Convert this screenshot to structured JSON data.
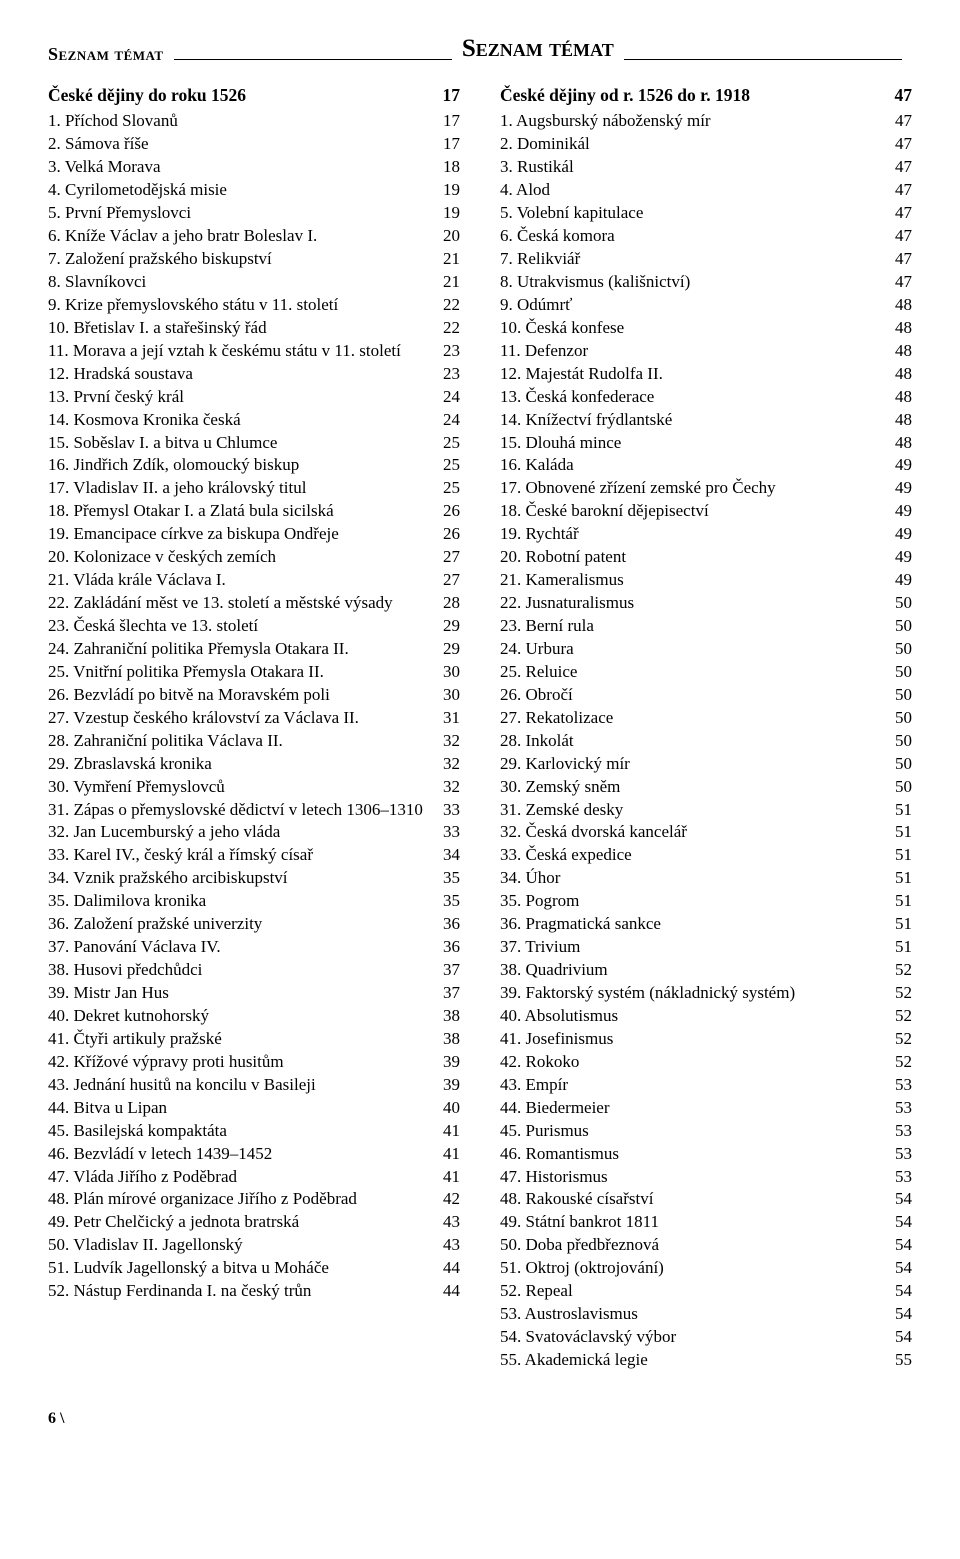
{
  "header": {
    "sideLabel": "Seznam témat",
    "centerTitle": "Seznam témat"
  },
  "footer": {
    "text": "6 \\"
  },
  "left": {
    "sectionTitle": "České dějiny do roku 1526",
    "sectionPage": "17",
    "items": [
      {
        "label": "1. Příchod Slovanů",
        "page": "17"
      },
      {
        "label": "2. Sámova říše",
        "page": "17"
      },
      {
        "label": "3. Velká Morava",
        "page": "18"
      },
      {
        "label": "4. Cyrilometodějská misie",
        "page": "19"
      },
      {
        "label": "5. První Přemyslovci",
        "page": "19"
      },
      {
        "label": "6. Kníže Václav a jeho bratr Boleslav I.",
        "page": "20"
      },
      {
        "label": "7. Založení pražského biskupství",
        "page": "21"
      },
      {
        "label": "8. Slavníkovci",
        "page": "21"
      },
      {
        "label": "9. Krize přemyslovského státu v 11. století",
        "page": "22"
      },
      {
        "label": "10. Břetislav I. a stařešinský řád",
        "page": "22"
      },
      {
        "label": "11. Morava a její vztah k českému státu v 11. století",
        "page": "23"
      },
      {
        "label": "12. Hradská soustava",
        "page": "23"
      },
      {
        "label": "13. První český král",
        "page": "24"
      },
      {
        "label": "14. Kosmova Kronika česká",
        "page": "24"
      },
      {
        "label": "15. Soběslav I. a bitva u Chlumce",
        "page": "25"
      },
      {
        "label": "16. Jindřich Zdík, olomoucký biskup",
        "page": "25"
      },
      {
        "label": "17. Vladislav II. a jeho královský titul",
        "page": "25"
      },
      {
        "label": "18. Přemysl Otakar I. a Zlatá bula sicilská",
        "page": "26"
      },
      {
        "label": "19. Emancipace církve za biskupa Ondřeje",
        "page": "26"
      },
      {
        "label": "20. Kolonizace v českých zemích",
        "page": "27"
      },
      {
        "label": "21. Vláda krále Václava I.",
        "page": "27"
      },
      {
        "label": "22. Zakládání měst ve 13. století a městské výsady",
        "page": "28"
      },
      {
        "label": "23. Česká šlechta ve 13. století",
        "page": "29"
      },
      {
        "label": "24. Zahraniční politika Přemysla Otakara II.",
        "page": "29"
      },
      {
        "label": "25. Vnitřní politika Přemysla Otakara II.",
        "page": "30"
      },
      {
        "label": "26. Bezvládí po bitvě na Moravském poli",
        "page": "30"
      },
      {
        "label": "27. Vzestup českého království za Václava II.",
        "page": "31"
      },
      {
        "label": "28. Zahraniční politika Václava II.",
        "page": "32"
      },
      {
        "label": "29. Zbraslavská kronika",
        "page": "32"
      },
      {
        "label": "30. Vymření Přemyslovců",
        "page": "32"
      },
      {
        "label": "31. Zápas o přemyslovské dědictví v letech 1306–1310",
        "page": "33"
      },
      {
        "label": "32. Jan Lucemburský a jeho vláda",
        "page": "33"
      },
      {
        "label": "33. Karel IV., český král a římský císař",
        "page": "34"
      },
      {
        "label": "34. Vznik pražského arcibiskupství",
        "page": "35"
      },
      {
        "label": "35. Dalimilova kronika",
        "page": "35"
      },
      {
        "label": "36. Založení pražské univerzity",
        "page": "36"
      },
      {
        "label": "37. Panování Václava IV.",
        "page": "36"
      },
      {
        "label": "38. Husovi předchůdci",
        "page": "37"
      },
      {
        "label": "39. Mistr Jan Hus",
        "page": "37"
      },
      {
        "label": "40. Dekret kutnohorský",
        "page": "38"
      },
      {
        "label": "41. Čtyři artikuly pražské",
        "page": "38"
      },
      {
        "label": "42. Křížové výpravy proti husitům",
        "page": "39"
      },
      {
        "label": "43. Jednání husitů na koncilu v Basileji",
        "page": "39"
      },
      {
        "label": "44. Bitva u Lipan",
        "page": "40"
      },
      {
        "label": "45. Basilejská kompaktáta",
        "page": "41"
      },
      {
        "label": "46. Bezvládí v letech 1439–1452",
        "page": "41"
      },
      {
        "label": "47. Vláda Jiřího z Poděbrad",
        "page": "41"
      },
      {
        "label": "48. Plán mírové organizace Jiřího z Poděbrad",
        "page": "42"
      },
      {
        "label": "49. Petr Chelčický a jednota bratrská",
        "page": "43"
      },
      {
        "label": "50. Vladislav II. Jagellonský",
        "page": "43"
      },
      {
        "label": "51. Ludvík Jagellonský a bitva u Moháče",
        "page": "44"
      },
      {
        "label": "52. Nástup Ferdinanda I. na český trůn",
        "page": "44"
      }
    ]
  },
  "right": {
    "sectionTitle": "České dějiny od r. 1526 do r. 1918",
    "sectionPage": "47",
    "items": [
      {
        "label": "1. Augsburský náboženský mír",
        "page": "47"
      },
      {
        "label": "2. Dominikál",
        "page": "47"
      },
      {
        "label": "3. Rustikál",
        "page": "47"
      },
      {
        "label": "4. Alod",
        "page": "47"
      },
      {
        "label": "5. Volební kapitulace",
        "page": "47"
      },
      {
        "label": "6. Česká komora",
        "page": "47"
      },
      {
        "label": "7. Relikviář",
        "page": "47"
      },
      {
        "label": "8. Utrakvismus (kališnictví)",
        "page": "47"
      },
      {
        "label": "9. Odúmrť",
        "page": "48"
      },
      {
        "label": "10. Česká konfese",
        "page": "48"
      },
      {
        "label": "11. Defenzor",
        "page": "48"
      },
      {
        "label": "12. Majestát Rudolfa II.",
        "page": "48"
      },
      {
        "label": "13. Česká konfederace",
        "page": "48"
      },
      {
        "label": "14. Knížectví frýdlantské",
        "page": "48"
      },
      {
        "label": "15. Dlouhá mince",
        "page": "48"
      },
      {
        "label": "16. Kaláda",
        "page": "49"
      },
      {
        "label": "17. Obnovené zřízení zemské pro Čechy",
        "page": "49"
      },
      {
        "label": "18. České barokní dějepisectví",
        "page": "49"
      },
      {
        "label": "19. Rychtář",
        "page": "49"
      },
      {
        "label": "20. Robotní patent",
        "page": "49"
      },
      {
        "label": "21. Kameralismus",
        "page": "49"
      },
      {
        "label": "22. Jusnaturalismus",
        "page": "50"
      },
      {
        "label": "23. Berní rula",
        "page": "50"
      },
      {
        "label": "24. Urbura",
        "page": "50"
      },
      {
        "label": "25. Reluice",
        "page": "50"
      },
      {
        "label": "26. Obročí",
        "page": "50"
      },
      {
        "label": "27. Rekatolizace",
        "page": "50"
      },
      {
        "label": "28. Inkolát",
        "page": "50"
      },
      {
        "label": "29. Karlovický mír",
        "page": "50"
      },
      {
        "label": "30. Zemský sněm",
        "page": "50"
      },
      {
        "label": "31. Zemské desky",
        "page": "51"
      },
      {
        "label": "32. Česká dvorská kancelář",
        "page": "51"
      },
      {
        "label": "33. Česká expedice",
        "page": "51"
      },
      {
        "label": "34. Úhor",
        "page": "51"
      },
      {
        "label": "35. Pogrom",
        "page": "51"
      },
      {
        "label": "36. Pragmatická sankce",
        "page": "51"
      },
      {
        "label": "37. Trivium",
        "page": "51"
      },
      {
        "label": "38. Quadrivium",
        "page": "52"
      },
      {
        "label": "39. Faktorský systém (nákladnický systém)",
        "page": "52"
      },
      {
        "label": "40. Absolutismus",
        "page": "52"
      },
      {
        "label": "41. Josefinismus",
        "page": "52"
      },
      {
        "label": "42. Rokoko",
        "page": "52"
      },
      {
        "label": "43. Empír",
        "page": "53"
      },
      {
        "label": "44. Biedermeier",
        "page": "53"
      },
      {
        "label": "45. Purismus",
        "page": "53"
      },
      {
        "label": "46. Romantismus",
        "page": "53"
      },
      {
        "label": "47. Historismus",
        "page": "53"
      },
      {
        "label": "48. Rakouské císařství",
        "page": "54"
      },
      {
        "label": "49. Státní bankrot 1811",
        "page": "54"
      },
      {
        "label": "50. Doba předbřeznová",
        "page": "54"
      },
      {
        "label": "51. Oktroj (oktrojování)",
        "page": "54"
      },
      {
        "label": "52. Repeal",
        "page": "54"
      },
      {
        "label": "53. Austroslavismus",
        "page": "54"
      },
      {
        "label": "54. Svatováclavský výbor",
        "page": "54"
      },
      {
        "label": "55. Akademická legie",
        "page": "55"
      }
    ]
  }
}
